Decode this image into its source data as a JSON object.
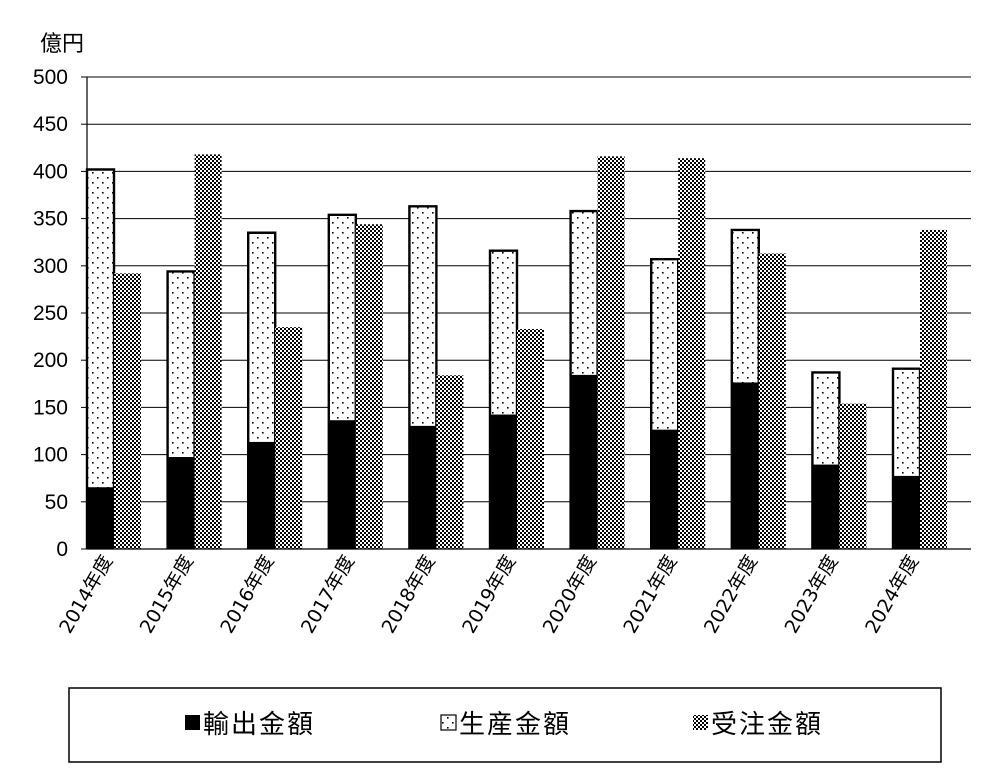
{
  "chart_data": {
    "type": "bar",
    "unit_label": "億円",
    "categories": [
      "2014年度",
      "2015年度",
      "2016年度",
      "2017年度",
      "2018年度",
      "2019年度",
      "2020年度",
      "2021年度",
      "2022年度",
      "2023年度",
      "2024年度"
    ],
    "series": [
      {
        "name": "輸出金額",
        "stack": "A",
        "values": [
          65,
          97,
          113,
          136,
          130,
          142,
          184,
          126,
          176,
          89,
          77
        ]
      },
      {
        "name": "生産金額",
        "stack": "A",
        "values": [
          337,
          197,
          222,
          218,
          233,
          174,
          174,
          181,
          162,
          98,
          114
        ]
      },
      {
        "name": "受注金額",
        "stack": "B",
        "values": [
          292,
          418,
          235,
          344,
          184,
          233,
          416,
          414,
          313,
          154,
          338
        ]
      }
    ],
    "ylim": [
      0,
      500
    ],
    "yticks": [
      0,
      50,
      100,
      150,
      200,
      250,
      300,
      350,
      400,
      450,
      500
    ],
    "grid": true,
    "legend_position": "bottom"
  }
}
